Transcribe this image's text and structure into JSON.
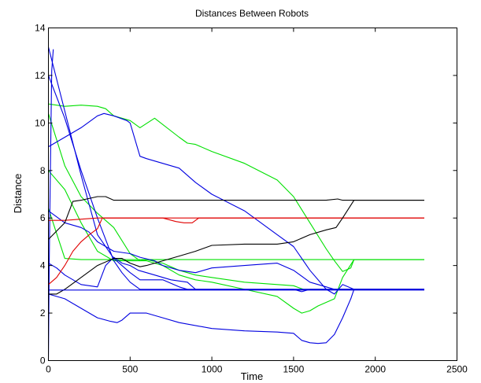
{
  "chart_data": {
    "type": "line",
    "title": "Distances Between Robots",
    "xlabel": "Time",
    "ylabel": "Distance",
    "xlim": [
      0,
      2500
    ],
    "ylim": [
      0,
      14
    ],
    "xticks": [
      0,
      500,
      1000,
      1500,
      2000,
      2500
    ],
    "yticks": [
      0,
      2,
      4,
      6,
      8,
      10,
      12,
      14
    ],
    "grid": false,
    "legend": "none",
    "colors": {
      "green": "#00e000",
      "blue": "#0000e0",
      "red": "#e00000",
      "black": "#000000"
    },
    "series": [
      {
        "color": "#00e000",
        "x": [
          0,
          100,
          200,
          300,
          350,
          400,
          500,
          560,
          650,
          800,
          850,
          900,
          1000,
          1200,
          1400,
          1500,
          1600,
          1700,
          1750,
          1800,
          1850,
          1870,
          2300
        ],
        "y": [
          10.8,
          10.7,
          10.75,
          10.7,
          10.6,
          10.3,
          10.1,
          9.8,
          10.2,
          9.4,
          9.15,
          9.1,
          8.8,
          8.3,
          7.6,
          6.9,
          5.8,
          4.7,
          4.2,
          3.75,
          3.9,
          4.25,
          4.25
        ]
      },
      {
        "color": "#00e000",
        "x": [
          0,
          100,
          200,
          300,
          400,
          500,
          560,
          600,
          700,
          800,
          900,
          1000,
          1200,
          1400,
          1500,
          1560,
          1650,
          1750,
          1800,
          1870,
          2300
        ],
        "y": [
          10.4,
          8.2,
          6.9,
          6.2,
          5.6,
          4.5,
          4.2,
          4.25,
          4.1,
          3.8,
          3.6,
          3.5,
          3.3,
          3.2,
          3.15,
          3.0,
          3.0,
          3.0,
          3.0,
          3.0,
          3.0
        ]
      },
      {
        "color": "#00e000",
        "x": [
          0,
          100,
          200,
          300,
          400,
          500,
          600,
          700,
          800,
          900,
          1000,
          1200,
          1400,
          1500,
          1550,
          1600,
          1650,
          1750,
          1800,
          1870,
          2300
        ],
        "y": [
          8.0,
          7.2,
          5.8,
          4.6,
          4.2,
          4.2,
          4.2,
          4.0,
          3.6,
          3.4,
          3.3,
          3.0,
          2.7,
          2.2,
          2.0,
          2.1,
          2.3,
          2.6,
          3.5,
          4.25,
          4.25
        ]
      },
      {
        "color": "#00e000",
        "x": [
          0,
          100,
          200,
          300,
          400,
          500,
          600,
          800,
          1000,
          1200,
          1500,
          1700,
          1870,
          2300
        ],
        "y": [
          6.4,
          4.3,
          4.25,
          4.25,
          4.25,
          4.25,
          4.25,
          4.25,
          4.25,
          4.25,
          4.25,
          4.25,
          4.25,
          4.25
        ]
      },
      {
        "color": "#0000e0",
        "x": [
          0,
          100,
          200,
          300,
          400,
          500,
          560,
          700,
          800,
          850,
          900,
          1000,
          1200,
          1400,
          1500,
          1600,
          1700,
          1750,
          1800,
          1870,
          2300
        ],
        "y": [
          13.2,
          10.5,
          7.8,
          5.3,
          4.3,
          3.7,
          3.4,
          3.4,
          3.1,
          3.0,
          3.0,
          3.0,
          3.0,
          3.0,
          3.0,
          3.0,
          3.0,
          3.0,
          3.0,
          3.0,
          3.0
        ]
      },
      {
        "color": "#0000e0",
        "x": [
          0,
          100,
          200,
          300,
          400,
          450,
          500,
          560,
          600,
          800,
          1000,
          1200,
          1500,
          1800,
          2300
        ],
        "y": [
          12.0,
          10.2,
          8.0,
          6.0,
          4.2,
          3.7,
          3.3,
          3.0,
          3.0,
          3.0,
          3.0,
          3.0,
          3.0,
          3.0,
          3.0
        ]
      },
      {
        "color": "#0000e0",
        "x": [
          0,
          100,
          200,
          300,
          340,
          400,
          480,
          500,
          560,
          600,
          800,
          900,
          1000,
          1200,
          1400,
          1500,
          1600,
          1700,
          1750,
          1800,
          1870,
          2300
        ],
        "y": [
          9.0,
          9.4,
          9.8,
          10.3,
          10.4,
          10.3,
          10.1,
          10.0,
          8.6,
          8.5,
          8.1,
          7.5,
          7.0,
          6.3,
          5.3,
          4.8,
          3.8,
          3.0,
          2.8,
          3.2,
          3.0,
          3.0
        ]
      },
      {
        "color": "#0000e0",
        "x": [
          0,
          100,
          200,
          250,
          300,
          400,
          500,
          560,
          650,
          700,
          800,
          900,
          1000,
          1200,
          1400,
          1500,
          1600,
          1700,
          1750,
          1800,
          1870,
          2300
        ],
        "y": [
          6.3,
          5.8,
          5.6,
          5.4,
          5.0,
          4.6,
          4.5,
          4.35,
          4.2,
          4.0,
          3.8,
          3.7,
          3.9,
          4.0,
          4.1,
          3.8,
          3.3,
          3.1,
          3.0,
          3.0,
          3.0,
          3.0
        ]
      },
      {
        "color": "#0000e0",
        "x": [
          0,
          50,
          100,
          200,
          300,
          350,
          400,
          450,
          500,
          550,
          650,
          750,
          850,
          900,
          950,
          1000,
          1200,
          1400,
          1500,
          1550,
          1600,
          1700,
          1750,
          1800,
          1870,
          2300
        ],
        "y": [
          4.1,
          3.9,
          3.6,
          3.2,
          3.1,
          4.0,
          4.35,
          4.1,
          4.0,
          3.8,
          3.6,
          3.4,
          3.3,
          3.0,
          3.0,
          3.0,
          3.0,
          3.0,
          3.0,
          2.9,
          3.0,
          3.0,
          3.0,
          3.0,
          3.0,
          3.0
        ]
      },
      {
        "color": "#0000e0",
        "x": [
          0,
          100,
          200,
          300,
          380,
          420,
          450,
          500,
          560,
          600,
          700,
          800,
          1000,
          1200,
          1400,
          1500,
          1550,
          1600,
          1650,
          1700,
          1750,
          1800,
          1850,
          1870,
          2300
        ],
        "y": [
          2.8,
          2.6,
          2.2,
          1.8,
          1.65,
          1.6,
          1.7,
          2.0,
          2.0,
          2.0,
          1.8,
          1.6,
          1.35,
          1.25,
          1.2,
          1.15,
          0.85,
          0.75,
          0.72,
          0.75,
          1.1,
          1.8,
          2.6,
          3.0,
          3.0
        ]
      },
      {
        "color": "#0000e0",
        "x": [
          0,
          5,
          10,
          15,
          20,
          30
        ],
        "y": [
          0.0,
          4.0,
          7.0,
          9.5,
          12.2,
          13.1
        ]
      },
      {
        "color": "#e00000",
        "x": [
          0,
          50,
          100,
          150,
          200,
          250,
          300,
          330,
          400,
          600,
          700,
          780,
          830,
          880,
          920,
          1000,
          1500,
          1800,
          2300
        ],
        "y": [
          3.2,
          3.5,
          4.0,
          4.6,
          5.0,
          5.3,
          5.55,
          6.0,
          6.0,
          6.0,
          6.0,
          5.85,
          5.8,
          5.8,
          6.0,
          6.0,
          6.0,
          6.0,
          6.0
        ]
      },
      {
        "color": "#e00000",
        "x": [
          0,
          100,
          200,
          300,
          330,
          2300
        ],
        "y": [
          5.9,
          5.9,
          5.95,
          6.0,
          6.0,
          6.0
        ]
      },
      {
        "color": "#000000",
        "x": [
          0,
          100,
          150,
          200,
          300,
          350,
          400,
          600,
          800,
          1000,
          1200,
          1500,
          1700,
          1770,
          1800,
          1870,
          2300
        ],
        "y": [
          5.1,
          5.8,
          6.7,
          6.75,
          6.9,
          6.9,
          6.75,
          6.75,
          6.75,
          6.75,
          6.75,
          6.75,
          6.75,
          6.8,
          6.75,
          6.75,
          6.75
        ]
      },
      {
        "color": "#000000",
        "x": [
          0,
          50,
          100,
          200,
          300,
          400,
          450,
          500,
          560,
          600,
          700,
          800,
          900,
          1000,
          1200,
          1400,
          1500,
          1600,
          1700,
          1760,
          1800,
          1870,
          2300
        ],
        "y": [
          2.8,
          2.8,
          3.0,
          3.5,
          4.0,
          4.3,
          4.3,
          4.1,
          3.95,
          4.0,
          4.2,
          4.4,
          4.6,
          4.85,
          4.9,
          4.9,
          5.0,
          5.3,
          5.5,
          5.6,
          6.0,
          6.75,
          6.75
        ]
      },
      {
        "color": "#0000e0",
        "x": [
          0,
          2300
        ],
        "y": [
          2.97,
          2.97
        ]
      }
    ]
  }
}
